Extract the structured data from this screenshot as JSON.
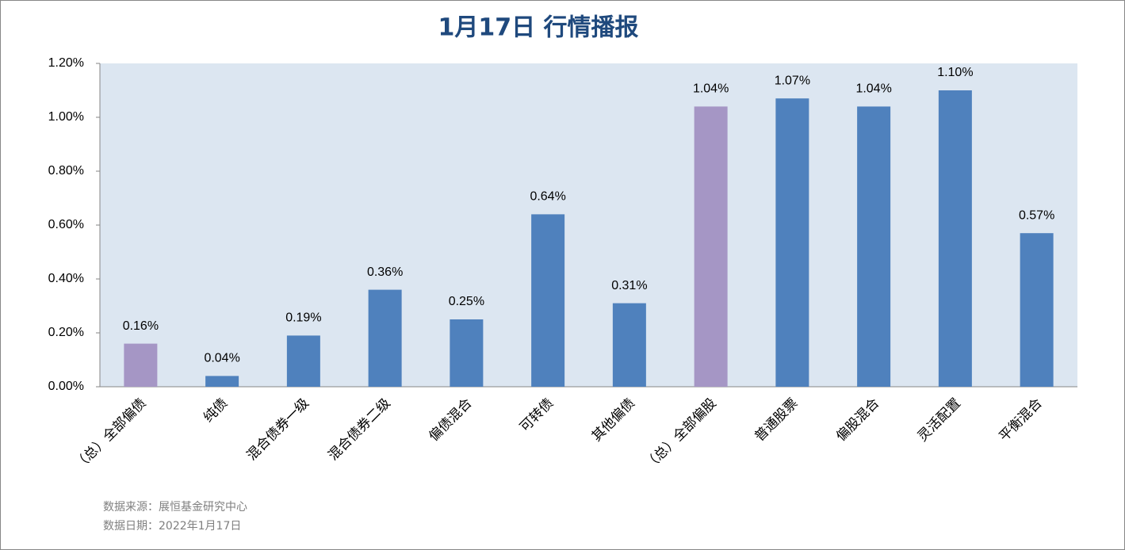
{
  "chart_data": {
    "type": "bar",
    "title": "1月17日  行情播报",
    "categories": [
      "（总）全部偏债",
      "纯债",
      "混合债券一级",
      "混合债券二级",
      "偏债混合",
      "可转债",
      "其他偏债",
      "（总）全部偏股",
      "普通股票",
      "偏股混合",
      "灵活配置",
      "平衡混合"
    ],
    "values": [
      0.16,
      0.04,
      0.19,
      0.36,
      0.25,
      0.64,
      0.31,
      1.04,
      1.07,
      1.04,
      1.1,
      0.57
    ],
    "value_labels": [
      "0.16%",
      "0.04%",
      "0.19%",
      "0.36%",
      "0.25%",
      "0.64%",
      "0.31%",
      "1.04%",
      "1.07%",
      "1.04%",
      "1.10%",
      "0.57%"
    ],
    "colors": [
      "#a596c5",
      "#4f81bd",
      "#4f81bd",
      "#4f81bd",
      "#4f81bd",
      "#4f81bd",
      "#4f81bd",
      "#a596c5",
      "#4f81bd",
      "#4f81bd",
      "#4f81bd",
      "#4f81bd"
    ],
    "ylim": [
      0,
      1.2
    ],
    "yticks": [
      {
        "value": 0,
        "label": "0.00%"
      },
      {
        "value": 0.2,
        "label": "0.20%"
      },
      {
        "value": 0.4,
        "label": "0.40%"
      },
      {
        "value": 0.6,
        "label": "0.60%"
      },
      {
        "value": 0.8,
        "label": "0.80%"
      },
      {
        "value": 1.0,
        "label": "1.00%"
      },
      {
        "value": 1.2,
        "label": "1.20%"
      }
    ],
    "grid": false,
    "notes": [
      "数据来源：展恒基金研究中心",
      "数据日期：2022年1月17日"
    ]
  }
}
